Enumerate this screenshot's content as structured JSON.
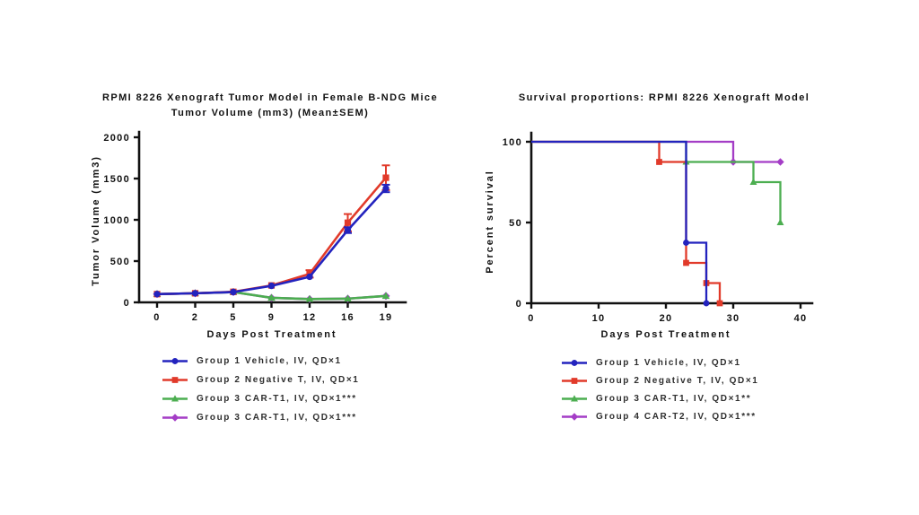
{
  "colors": {
    "blue": "#2323BE",
    "red": "#E13A2A",
    "green": "#4CAE50",
    "purple": "#A43DC6",
    "axis": "#111111"
  },
  "chart_data": [
    {
      "type": "line",
      "title": "RPMI 8226 Xenograft Tumor Model in Female B-NDG Mice",
      "subtitle": "Tumor Volume (mm3) (Mean±SEM)",
      "xlabel": "Days Post Treatment",
      "ylabel": "Tumor Volume (mm3)",
      "categories": [
        0,
        2,
        5,
        9,
        12,
        16,
        19
      ],
      "x_spacing": "equal",
      "yticks": [
        0,
        500,
        1000,
        1500,
        2000
      ],
      "ylim": [
        0,
        2000
      ],
      "legend_position": "bottom",
      "series": [
        {
          "name": "Group 1 Vehicle, IV, QD×1",
          "color": "#2323BE",
          "marker": "circle",
          "values": [
            100,
            110,
            125,
            200,
            310,
            875,
            1380
          ],
          "sem": [
            0,
            5,
            8,
            15,
            25,
            35,
            45
          ]
        },
        {
          "name": "Group 2 Negative T, IV, QD×1",
          "color": "#E13A2A",
          "marker": "square",
          "values": [
            100,
            110,
            128,
            205,
            345,
            965,
            1510
          ],
          "sem": [
            0,
            5,
            10,
            20,
            45,
            105,
            150
          ]
        },
        {
          "name": "Group 3 CAR-T1, IV, QD×1***",
          "color": "#4CAE50",
          "marker": "triangle",
          "values": [
            100,
            110,
            125,
            55,
            40,
            45,
            78
          ],
          "sem": [
            0,
            5,
            8,
            10,
            8,
            10,
            14
          ]
        },
        {
          "name": "Group 3 CAR-T1, IV, QD×1***",
          "color": "#A43DC6",
          "marker": "diamond",
          "values": [
            100,
            110,
            125,
            55,
            40,
            45,
            78
          ],
          "sem": [
            0,
            0,
            0,
            0,
            0,
            0,
            0
          ]
        }
      ]
    },
    {
      "type": "step",
      "title": "Survival proportions: RPMI 8226 Xenograft Model",
      "xlabel": "Days Post Treatment",
      "ylabel": "Percent survival",
      "xticks": [
        0,
        10,
        20,
        30,
        40
      ],
      "xlim": [
        0,
        40
      ],
      "yticks": [
        0,
        50,
        100
      ],
      "ylim": [
        0,
        100
      ],
      "legend_position": "bottom",
      "series": [
        {
          "name": "Group 1 Vehicle, IV, QD×1",
          "color": "#2323BE",
          "marker": "circle",
          "steps": [
            [
              0,
              100
            ],
            [
              23,
              100
            ],
            [
              23,
              37.5
            ],
            [
              26,
              37.5
            ],
            [
              26,
              0
            ]
          ],
          "markers_at": [
            [
              23,
              37.5
            ],
            [
              26,
              0
            ]
          ]
        },
        {
          "name": "Group 2 Negative T, IV, QD×1",
          "color": "#E13A2A",
          "marker": "square",
          "steps": [
            [
              0,
              100
            ],
            [
              19,
              100
            ],
            [
              19,
              87.5
            ],
            [
              23,
              87.5
            ],
            [
              23,
              25
            ],
            [
              26,
              25
            ],
            [
              26,
              12.5
            ],
            [
              28,
              12.5
            ],
            [
              28,
              0
            ]
          ],
          "markers_at": [
            [
              19,
              87.5
            ],
            [
              23,
              25
            ],
            [
              26,
              12.5
            ],
            [
              28,
              0
            ]
          ]
        },
        {
          "name": "Group 3 CAR-T1, IV, QD×1**",
          "color": "#4CAE50",
          "marker": "triangle",
          "steps": [
            [
              0,
              100
            ],
            [
              23,
              100
            ],
            [
              23,
              87.5
            ],
            [
              33,
              87.5
            ],
            [
              33,
              75
            ],
            [
              37,
              75
            ],
            [
              37,
              50
            ]
          ],
          "markers_at": [
            [
              23,
              87.5
            ],
            [
              33,
              75
            ],
            [
              37,
              50
            ]
          ]
        },
        {
          "name": "Group 4 CAR-T2, IV, QD×1***",
          "color": "#A43DC6",
          "marker": "diamond",
          "steps": [
            [
              0,
              100
            ],
            [
              30,
              100
            ],
            [
              30,
              87.5
            ],
            [
              37,
              87.5
            ]
          ],
          "markers_at": [
            [
              30,
              87.5
            ],
            [
              37,
              87.5
            ]
          ]
        }
      ]
    }
  ]
}
